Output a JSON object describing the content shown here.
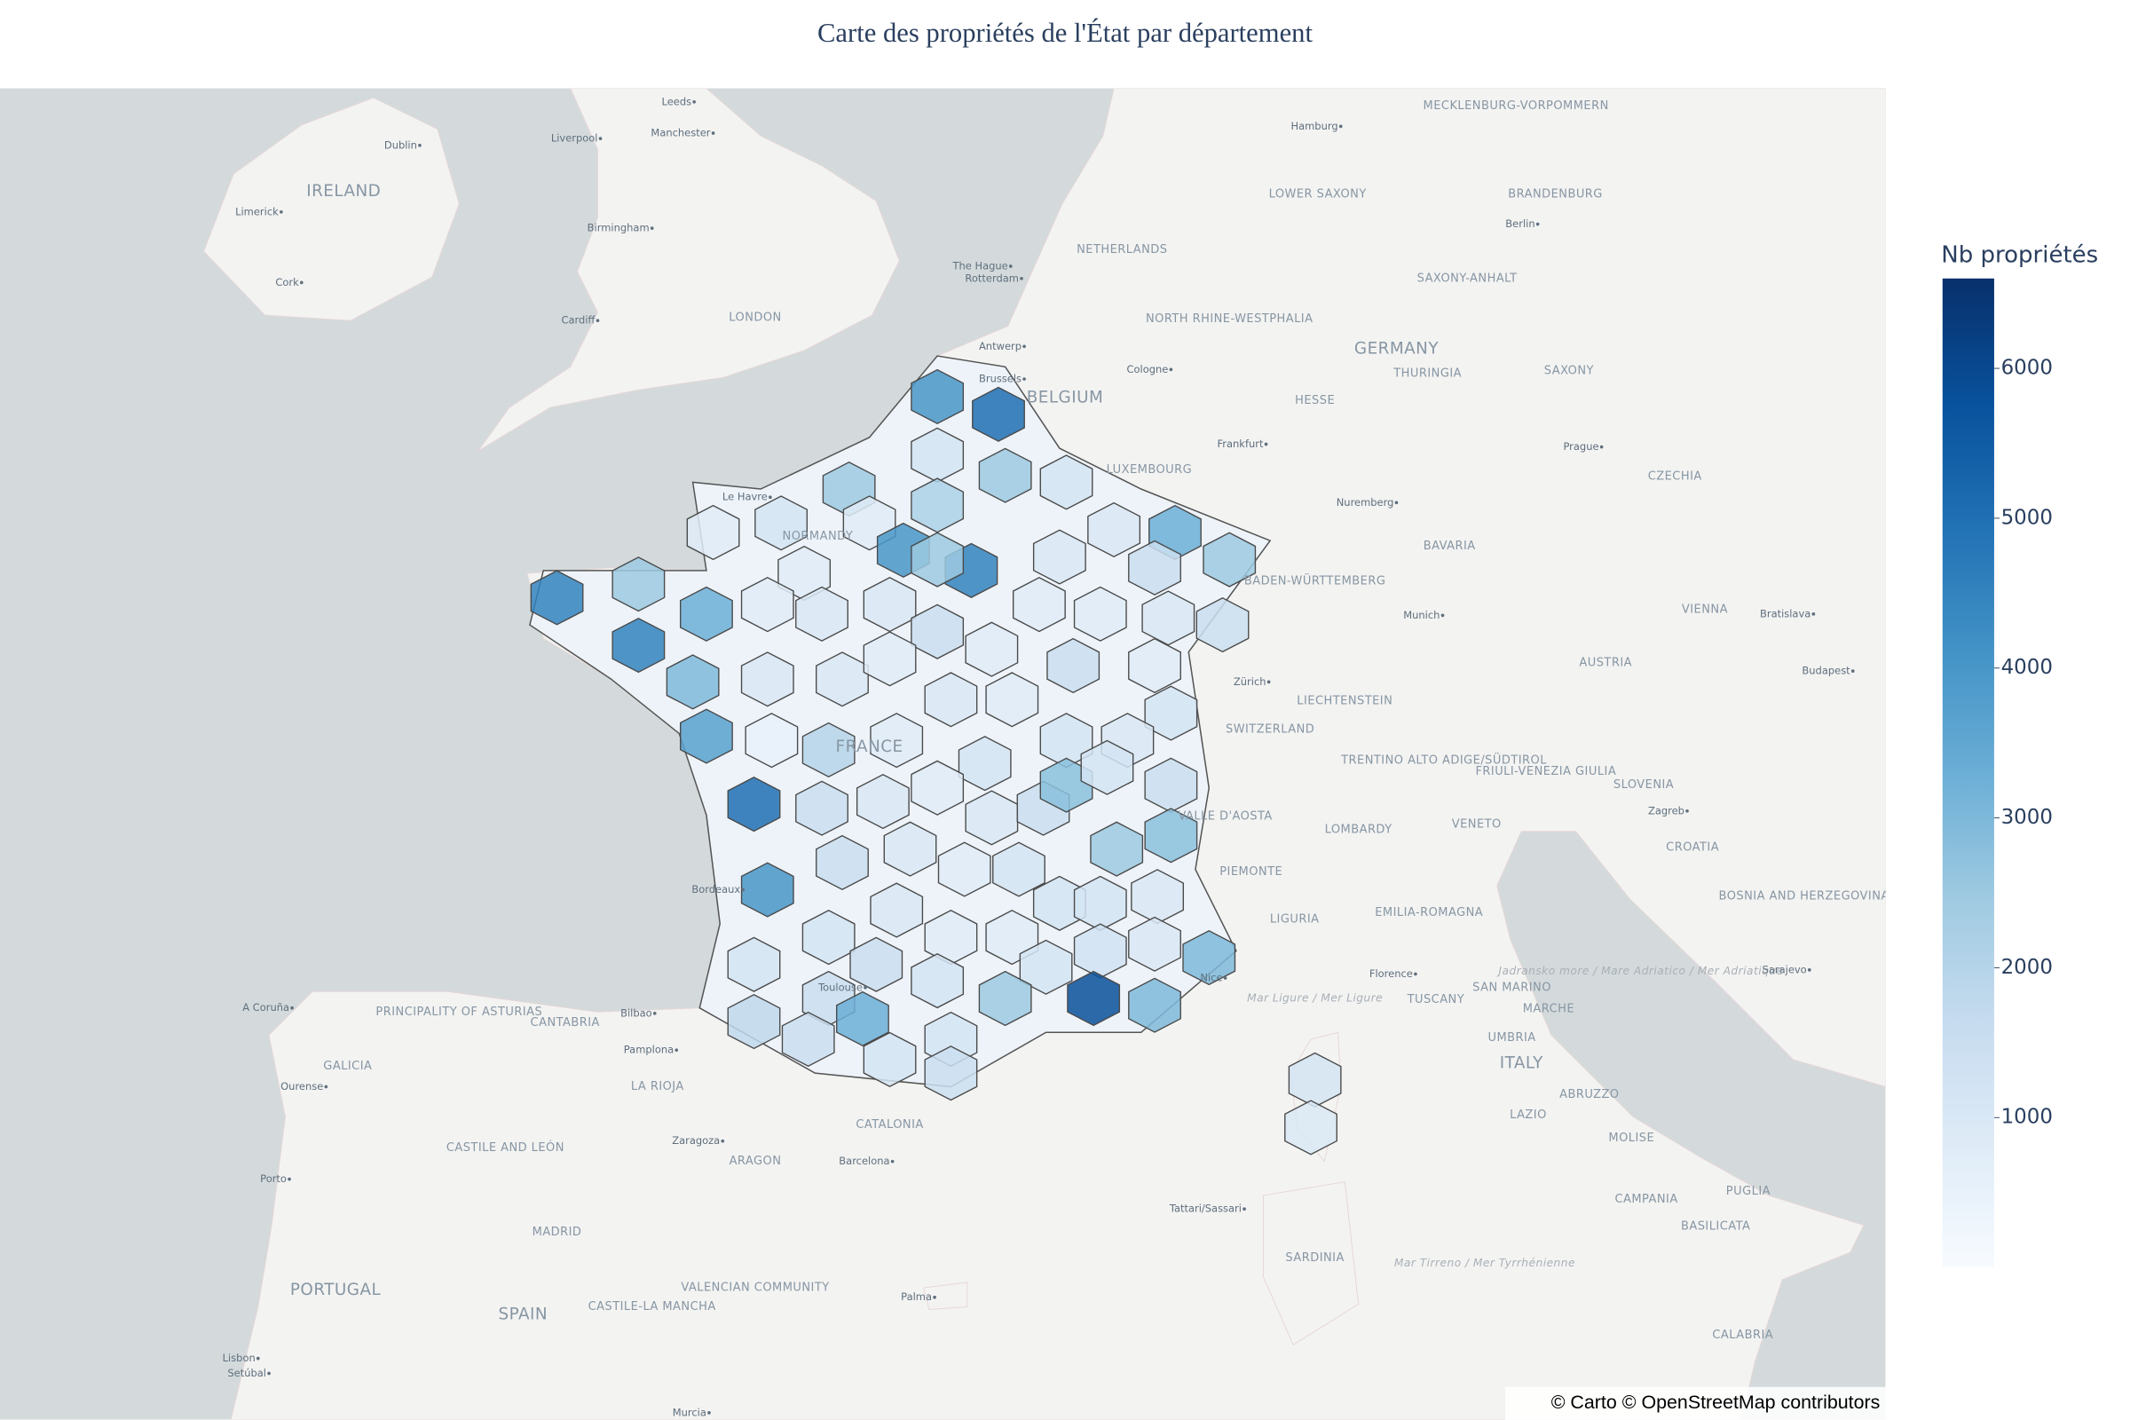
{
  "chart_data": {
    "type": "choropleth",
    "title": "Carte des propriétés de l'État par département",
    "values": [
      5000,
      4000,
      1200,
      2500,
      2500,
      2200,
      1200,
      1000,
      1000,
      3300,
      2500,
      1500,
      1500,
      1000,
      800,
      1200,
      800,
      800,
      4000,
      4500,
      2500,
      1000,
      1500,
      800,
      800,
      800,
      4500,
      2500,
      4500,
      3300,
      800,
      1000,
      3000,
      1000,
      1000,
      800,
      1000,
      800,
      1500,
      800,
      1200,
      1000,
      1200,
      3700,
      500,
      2000,
      800,
      1200,
      5000,
      1500,
      1000,
      800,
      1000,
      1500,
      2800,
      1200,
      1500,
      2800,
      2500,
      4000,
      1500,
      1000,
      800,
      1200,
      1000,
      1200,
      1200,
      1000,
      1200,
      1200,
      800,
      800,
      1200,
      1300,
      1000,
      3000,
      1500,
      1200,
      2500,
      5800,
      3000,
      1500,
      1800,
      1500,
      3300,
      1200,
      1200,
      1500,
      1200,
      1000
    ],
    "clim": [
      0,
      6600
    ],
    "colorscale": [
      "#f7fbff",
      "#deebf7",
      "#c6dbef",
      "#9ecae1",
      "#6baed6",
      "#4292c6",
      "#2171b5",
      "#08519c",
      "#08306b"
    ],
    "colorbar": {
      "title": "Nb propriétés",
      "ticks": [
        1000,
        2000,
        3000,
        4000,
        5000,
        6000
      ]
    },
    "regions": [
      "IRELAND",
      "LONDON",
      "MECKLENBURG-VORPOMMERN",
      "LOWER SAXONY",
      "BRANDENBURG",
      "NETHERLANDS",
      "SAXONY-ANHALT",
      "NORTH RHINE-WESTPHALIA",
      "GERMANY",
      "THURINGIA",
      "SAXONY",
      "BELGIUM",
      "HESSE",
      "LUXEMBOURG",
      "CZECHIA",
      "NORMANDY",
      "BAVARIA",
      "BADEN-WÜRTTEMBERG",
      "VIENNA",
      "AUSTRIA",
      "LIECHTENSTEIN",
      "SWITZERLAND",
      "TRENTINO ALTO ADIGE/SÜDTIROL",
      "FRIULI-VENEZIA GIULIA",
      "SLOVENIA",
      "VALLE D'AOSTA",
      "LOMBARDY",
      "VENETO",
      "CROATIA",
      "PIEMONTE",
      "LIGURIA",
      "EMILIA-ROMAGNA",
      "BOSNIA AND HERZEGOVINA",
      "SAN MARINO",
      "TUSCANY",
      "MARCHE",
      "PRINCIPALITY OF ASTURIAS",
      "CANTABRIA",
      "UMBRIA",
      "ITALY",
      "GALICIA",
      "ABRUZZO",
      "LA RIOJA",
      "LAZIO",
      "CATALONIA",
      "MOLISE",
      "CASTILE AND LEÓN",
      "ARAGON",
      "CAMPANIA",
      "PUGLIA",
      "BASILICATA",
      "MADRID",
      "SARDINIA",
      "VALENCIAN COMMUNITY",
      "PORTUGAL",
      "CASTILE-LA MANCHA",
      "SPAIN",
      "CALABRIA",
      "FRANCE",
      "Mar Ligure / Mer Ligure",
      "Jadransko more / Mare Adriatico / Mer Adriatique",
      "Mar Tirreno / Mer Tyrrhénienne"
    ],
    "cities": [
      "Leeds",
      "Dublin",
      "Liverpool",
      "Manchester",
      "Limerick",
      "Birmingham",
      "Cork",
      "Cardiff",
      "Hamburg",
      "Berlin",
      "The Hague",
      "Rotterdam",
      "Antwerp",
      "Brussels",
      "Cologne",
      "Frankfurt",
      "Prague",
      "Le Havre",
      "Nuremberg",
      "Munich",
      "Bratislava",
      "Budapest",
      "Zürich",
      "Zagreb",
      "Florence",
      "A Coruña",
      "Bilbao",
      "Pamplona",
      "Ourense",
      "Zaragoza",
      "Barcelona",
      "Porto",
      "Tattari/Sassari",
      "Palma",
      "Lisbon",
      "Setúbal",
      "Murcia",
      "Sarajevo",
      "Bordeaux",
      "Toulouse",
      "Nice"
    ],
    "attribution": "© Carto © OpenStreetMap contributors"
  }
}
